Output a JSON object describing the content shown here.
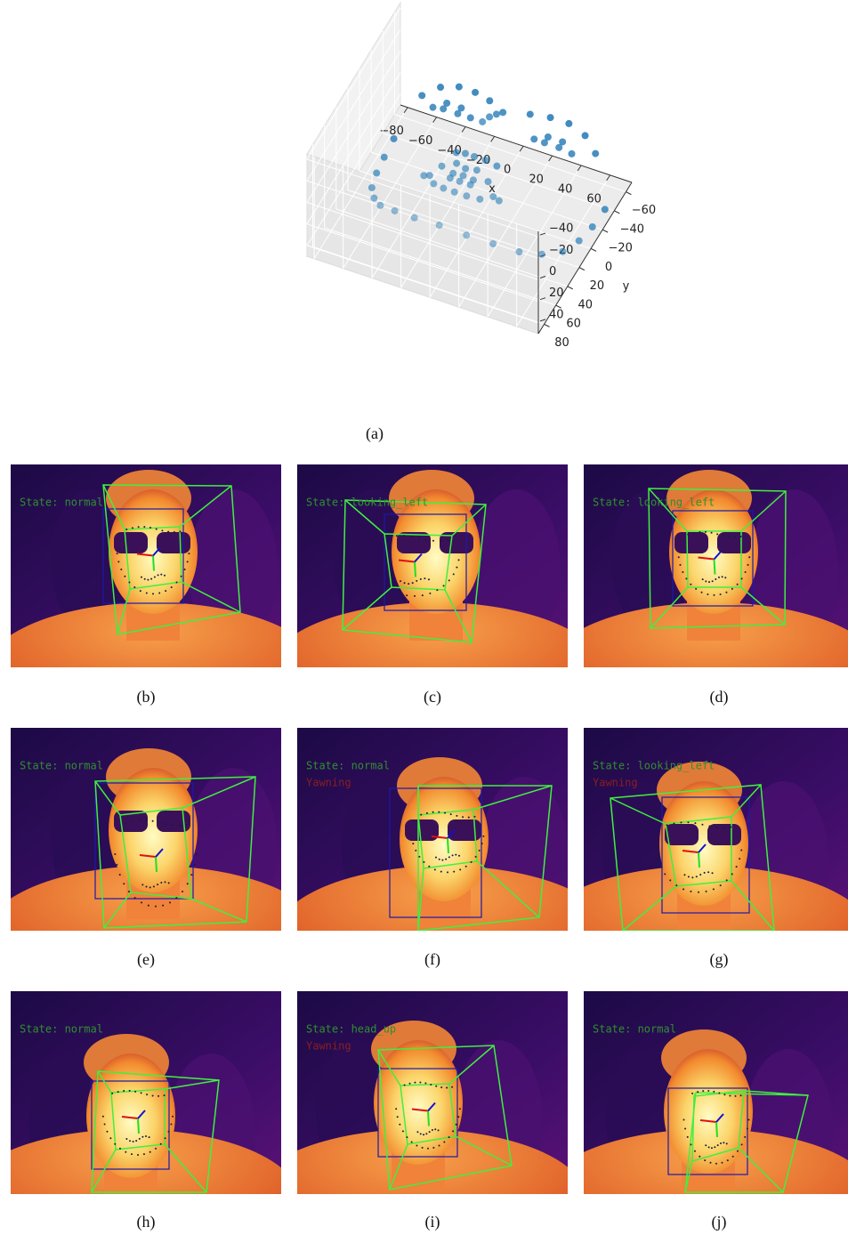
{
  "chart_data": {
    "type": "scatter3d",
    "x": [
      -73,
      -72,
      -70,
      -66,
      -58,
      -48,
      -34,
      -18,
      0,
      18,
      34,
      48,
      58,
      66,
      70,
      72,
      73,
      -60,
      -50,
      -38,
      -26,
      -14,
      14,
      26,
      38,
      50,
      60,
      0,
      0,
      0,
      0,
      -14,
      -7,
      0,
      7,
      14,
      -48,
      -40,
      -30,
      -22,
      -30,
      -40,
      22,
      30,
      40,
      48,
      40,
      30,
      -26,
      -16,
      -7,
      0,
      7,
      16,
      26,
      16,
      8,
      0,
      -8,
      -16,
      -22,
      -7,
      0,
      7,
      22,
      7,
      0,
      -7
    ],
    "y": [
      -29,
      -10,
      8,
      26,
      42,
      56,
      66,
      72,
      74,
      72,
      66,
      56,
      42,
      26,
      8,
      -10,
      -29,
      -45,
      -52,
      -54,
      -52,
      -47,
      -47,
      -52,
      -54,
      -52,
      -45,
      -35,
      -24,
      -12,
      0,
      10,
      12,
      14,
      12,
      10,
      -34,
      -38,
      -38,
      -34,
      -32,
      -32,
      -34,
      -38,
      -38,
      -34,
      -32,
      -32,
      36,
      30,
      27,
      29,
      27,
      30,
      36,
      44,
      47,
      48,
      47,
      44,
      36,
      33,
      33,
      33,
      36,
      38,
      39,
      38
    ],
    "z": [
      40,
      40,
      38,
      34,
      26,
      16,
      6,
      0,
      -3,
      0,
      6,
      16,
      26,
      34,
      38,
      40,
      40,
      8,
      2,
      -2,
      -4,
      -6,
      -6,
      -4,
      -2,
      2,
      8,
      -12,
      -20,
      -28,
      -34,
      -8,
      -12,
      -14,
      -12,
      -8,
      4,
      0,
      0,
      2,
      0,
      0,
      2,
      0,
      0,
      4,
      0,
      0,
      -4,
      -12,
      -16,
      -16,
      -16,
      -12,
      -4,
      -8,
      -10,
      -11,
      -10,
      -8,
      -6,
      -12,
      -13,
      -12,
      -6,
      -12,
      -13,
      -12
    ],
    "color": "#1f77b4",
    "xlabel": "x",
    "ylabel": "y",
    "xlim": [
      -85,
      75
    ],
    "ylim": [
      -70,
      90
    ],
    "zlim": [
      -45,
      50
    ],
    "zinvert": true,
    "xticks": [
      {
        "value": -80,
        "label": "−80"
      },
      {
        "value": -60,
        "label": "−60"
      },
      {
        "value": -40,
        "label": "−40"
      },
      {
        "value": -20,
        "label": "−20"
      },
      0,
      20,
      40,
      60
    ],
    "yticks": [
      {
        "value": -60,
        "label": "−60"
      },
      {
        "value": -40,
        "label": "−40"
      },
      {
        "value": -20,
        "label": "−20"
      },
      0,
      20,
      40,
      60,
      80
    ],
    "zticks": [
      {
        "value": -40,
        "label": "−40"
      },
      {
        "value": -20,
        "label": "−20"
      },
      0,
      20,
      40
    ],
    "grid": true,
    "caption": "(a)"
  },
  "panels": [
    {
      "caption": "(b)",
      "state": "State: normal"
    },
    {
      "caption": "(c)",
      "state": "State: looking_left"
    },
    {
      "caption": "(d)",
      "state": "State: looking_left"
    },
    {
      "caption": "(e)",
      "state": "State: normal"
    },
    {
      "caption": "(f)",
      "state": "State: normal",
      "alert": "Yawning"
    },
    {
      "caption": "(g)",
      "state": "State: looking_left",
      "alert": "Yawning"
    },
    {
      "caption": "(h)",
      "state": "State: normal"
    },
    {
      "caption": "(i)",
      "state": "State: head_up",
      "alert": "Yawning"
    },
    {
      "caption": "(j)",
      "state": "State: normal"
    }
  ]
}
